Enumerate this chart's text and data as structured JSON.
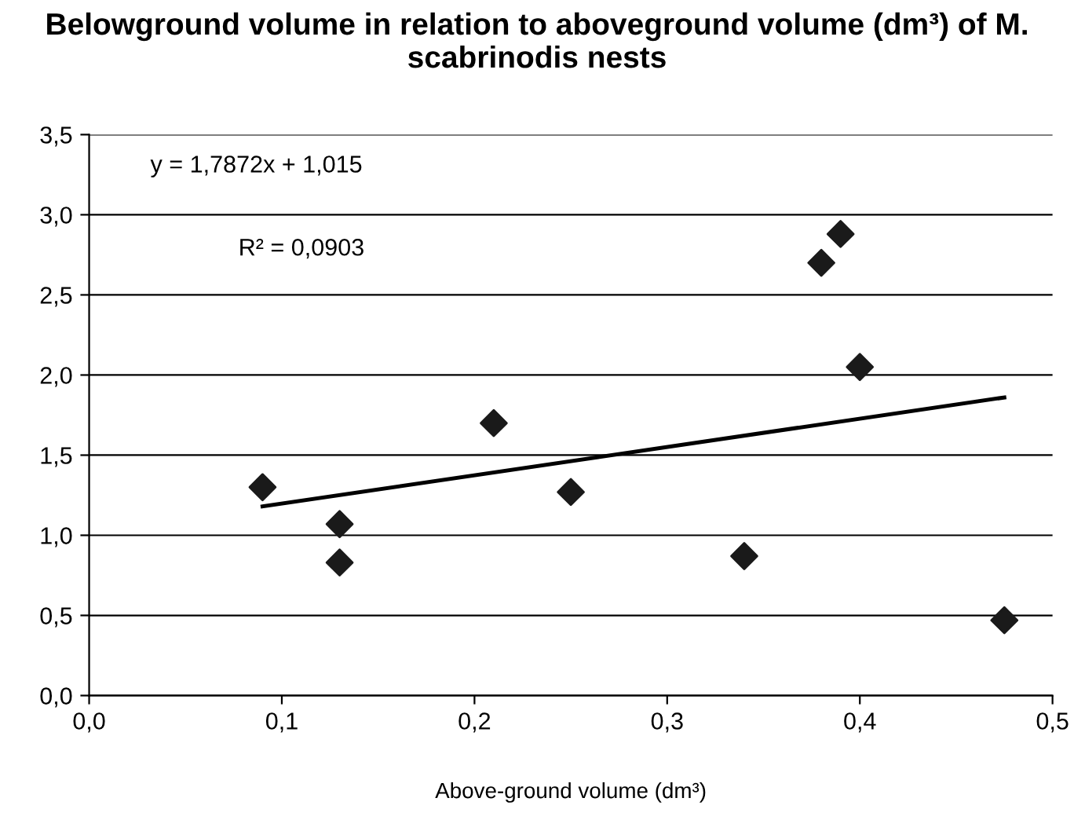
{
  "chart_data": {
    "type": "scatter",
    "title": "Belowground volume in relation to aboveground volume (dm³) of M. scabrinodis nests",
    "xlabel": "Above-ground volume (dm³)",
    "series": [
      {
        "color": "#1a1a1a",
        "marker": "diamond",
        "x": [
          0.09,
          0.13,
          0.13,
          0.21,
          0.25,
          0.34,
          0.38,
          0.39,
          0.4,
          0.475
        ],
        "values": [
          1.3,
          1.07,
          0.83,
          1.7,
          1.27,
          0.87,
          2.7,
          2.88,
          2.05,
          0.47
        ]
      },
      {
        "type": "line",
        "color": "#000000",
        "marker": "none",
        "line_style": "solid",
        "x": [
          0.09,
          0.475
        ],
        "values": [
          1.18,
          1.86
        ]
      }
    ],
    "annotations": [
      "y = 1,7872x + 1,015",
      "R² = 0,0903"
    ],
    "xlim": [
      0,
      0.5
    ],
    "ylim": [
      0,
      3.5
    ],
    "xticks": [
      {
        "value": 0,
        "label": "0,0"
      },
      {
        "value": 0.1,
        "label": "0,1"
      },
      {
        "value": 0.2,
        "label": "0,2"
      },
      {
        "value": 0.3,
        "label": "0,3"
      },
      {
        "value": 0.4,
        "label": "0,4"
      },
      {
        "value": 0.5,
        "label": "0,5"
      }
    ],
    "yticks": [
      {
        "value": 0,
        "label": "0,0"
      },
      {
        "value": 0.5,
        "label": "0,5"
      },
      {
        "value": 1,
        "label": "1,0"
      },
      {
        "value": 1.5,
        "label": "1,5"
      },
      {
        "value": 2,
        "label": "2,0"
      },
      {
        "value": 2.5,
        "label": "2,5"
      },
      {
        "value": 3,
        "label": "3,0"
      },
      {
        "value": 3.5,
        "label": "3,5"
      }
    ],
    "grid": "y",
    "legend": false
  }
}
